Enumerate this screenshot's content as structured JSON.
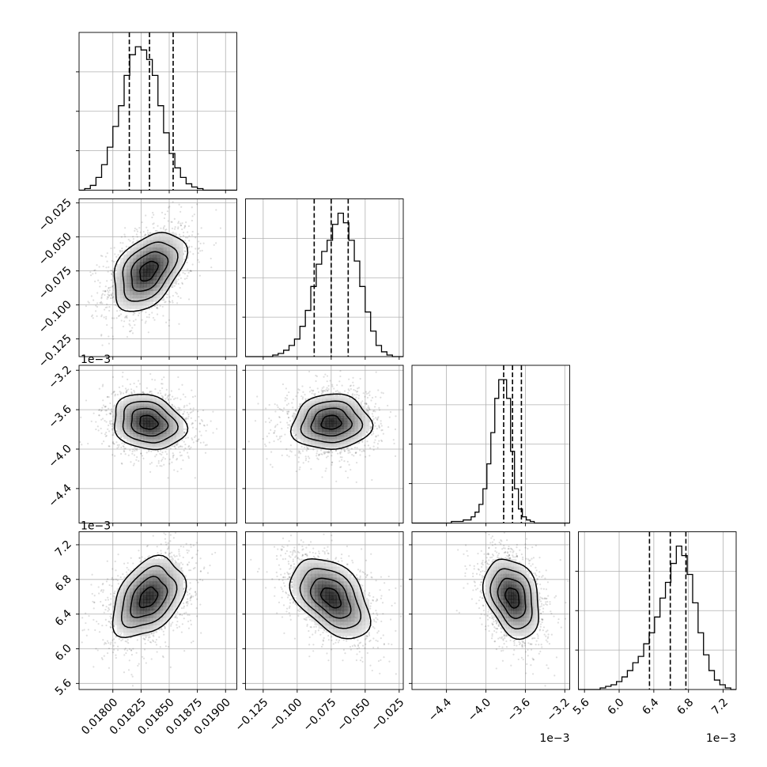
{
  "chart_data": {
    "type": "corner",
    "parameters": 4,
    "axis_ranges": [
      [
        0.0177,
        0.0191
      ],
      [
        -0.138,
        -0.022
      ],
      [
        -0.00475,
        -0.00315
      ],
      [
        0.00553,
        0.00735
      ]
    ],
    "tick_values": [
      [
        0.018,
        0.01825,
        0.0185,
        0.01875,
        0.019
      ],
      [
        -0.125,
        -0.1,
        -0.075,
        -0.05,
        -0.025
      ],
      [
        -0.0044,
        -0.004,
        -0.0036,
        -0.0032
      ],
      [
        0.0056,
        0.006,
        0.0064,
        0.0068,
        0.0072
      ]
    ],
    "tick_labels": [
      [
        "0.01800",
        "0.01825",
        "0.01850",
        "0.01875",
        "0.01900"
      ],
      [
        "−0.125",
        "−0.100",
        "−0.075",
        "−0.050",
        "−0.025"
      ],
      [
        "−4.4",
        "−4.0",
        "−3.6",
        "−3.2"
      ],
      [
        "5.6",
        "6.0",
        "6.4",
        "6.8",
        "7.2"
      ]
    ],
    "offset_labels": [
      "",
      "",
      "1e−3",
      "1e−3"
    ],
    "grid": true,
    "quantiles": [
      [
        0.018146,
        0.018325,
        0.018535
      ],
      [
        -0.0875,
        -0.075,
        -0.0625
      ],
      [
        -0.00382,
        -0.00373,
        -0.00364
      ],
      [
        0.00635,
        0.00659,
        0.00677
      ]
    ],
    "histograms": [
      {
        "edges_start": 0.0177,
        "edges_end": 0.0191,
        "counts": [
          0,
          1,
          3,
          8,
          16,
          27,
          40,
          53,
          72,
          85,
          90,
          88,
          82,
          72,
          53,
          36,
          23,
          14,
          8,
          4,
          2,
          1,
          0,
          0,
          0,
          0,
          0,
          0
        ]
      },
      {
        "edges_start": -0.138,
        "edges_end": -0.022,
        "counts": [
          0,
          0,
          0,
          0,
          0,
          1,
          2,
          4,
          7,
          11,
          19,
          29,
          44,
          58,
          66,
          73,
          83,
          90,
          84,
          73,
          60,
          44,
          28,
          16,
          7,
          3,
          1,
          0,
          0
        ]
      },
      {
        "edges_start": -0.00475,
        "edges_end": -0.00315,
        "counts": [
          0,
          0,
          0,
          0,
          0,
          0,
          0,
          0,
          0,
          0,
          1,
          1,
          1,
          2,
          2,
          4,
          7,
          12,
          22,
          38,
          58,
          80,
          92,
          92,
          80,
          46,
          22,
          9,
          4,
          2,
          1,
          0,
          0,
          0,
          0,
          0,
          0,
          0,
          0,
          0
        ]
      },
      {
        "edges_start": 0.00553,
        "edges_end": 0.00735,
        "counts": [
          0,
          0,
          0,
          0,
          1,
          2,
          3,
          5,
          8,
          12,
          17,
          21,
          29,
          36,
          46,
          58,
          68,
          80,
          91,
          85,
          73,
          55,
          36,
          22,
          12,
          6,
          3,
          1,
          0
        ]
      }
    ],
    "pairs": [
      {
        "row": 1,
        "col": 0,
        "mean": [
          0.018315,
          -0.075
        ],
        "sd": [
          0.00016,
          0.0145
        ],
        "corr": 0.42
      },
      {
        "row": 2,
        "col": 0,
        "mean": [
          0.018315,
          -0.00373
        ],
        "sd": [
          0.00016,
          0.00014
        ],
        "corr": -0.18
      },
      {
        "row": 2,
        "col": 1,
        "mean": [
          -0.075,
          -0.00373
        ],
        "sd": [
          0.0145,
          0.00014
        ],
        "corr": 0.05
      },
      {
        "row": 3,
        "col": 0,
        "mean": [
          0.018315,
          0.00659
        ],
        "sd": [
          0.00016,
          0.00023
        ],
        "corr": 0.38
      },
      {
        "row": 3,
        "col": 1,
        "mean": [
          -0.075,
          0.00659
        ],
        "sd": [
          0.0145,
          0.00023
        ],
        "corr": -0.45
      },
      {
        "row": 3,
        "col": 2,
        "mean": [
          -0.00373,
          0.00659
        ],
        "sd": [
          0.00014,
          0.00023
        ],
        "corr": -0.3
      }
    ],
    "contour_levels_sigma": [
      0.5,
      1.0,
      1.5,
      2.0
    ]
  }
}
